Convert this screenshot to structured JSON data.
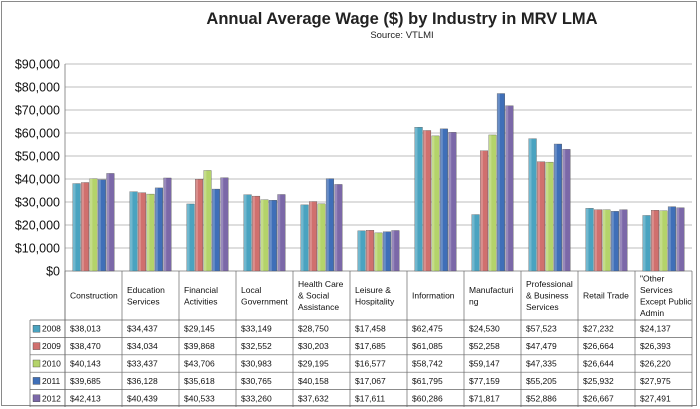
{
  "chart_data": {
    "type": "bar",
    "title": "Annual Average Wage ($) by Industry in MRV LMA",
    "subtitle": "Source: VTLMI",
    "ylim": [
      0,
      90000
    ],
    "yticks": [
      "$0",
      "$10,000",
      "$20,000",
      "$30,000",
      "$40,000",
      "$50,000",
      "$60,000",
      "$70,000",
      "$80,000",
      "$90,000"
    ],
    "grid": true,
    "legend": "data-table-left",
    "categories": [
      [
        "Construction"
      ],
      [
        "Education",
        "Services"
      ],
      [
        "Financial",
        "Activities"
      ],
      [
        "Local",
        "Government"
      ],
      [
        "Health Care",
        "& Social",
        "Assistance"
      ],
      [
        "Leisure &",
        "Hospitality"
      ],
      [
        "Information"
      ],
      [
        "Manufacturi",
        "ng"
      ],
      [
        "Professional",
        "& Business",
        "Services"
      ],
      [
        "Retail Trade"
      ],
      [
        "\"Other",
        "Services",
        "Except Public",
        "Admin"
      ]
    ],
    "series": [
      {
        "name": "2008",
        "color": "#4aa3c0",
        "values": [
          38013,
          34437,
          29145,
          33149,
          28750,
          17458,
          62475,
          24530,
          57523,
          27232,
          24137
        ],
        "labels": [
          "$38,013",
          "$34,437",
          "$29,145",
          "$33,149",
          "$28,750",
          "$17,458",
          "$62,475",
          "$24,530",
          "$57,523",
          "$27,232",
          "$24,137"
        ]
      },
      {
        "name": "2009",
        "color": "#d0706e",
        "values": [
          38470,
          34034,
          39868,
          32552,
          30203,
          17685,
          61085,
          52258,
          47479,
          26664,
          26393
        ],
        "labels": [
          "$38,470",
          "$34,034",
          "$39,868",
          "$32,552",
          "$30,203",
          "$17,685",
          "$61,085",
          "$52,258",
          "$47,479",
          "$26,664",
          "$26,393"
        ]
      },
      {
        "name": "2010",
        "color": "#b4d36a",
        "values": [
          40143,
          33437,
          43706,
          30983,
          29195,
          16577,
          58742,
          59147,
          47335,
          26644,
          26220
        ],
        "labels": [
          "$40,143",
          "$33,437",
          "$43,706",
          "$30,983",
          "$29,195",
          "$16,577",
          "$58,742",
          "$59,147",
          "$47,335",
          "$26,644",
          "$26,220"
        ]
      },
      {
        "name": "2011",
        "color": "#3f6fb8",
        "values": [
          39685,
          36128,
          35618,
          30765,
          40158,
          17067,
          61795,
          77159,
          55205,
          25932,
          27975
        ],
        "labels": [
          "$39,685",
          "$36,128",
          "$35,618",
          "$30,765",
          "$40,158",
          "$17,067",
          "$61,795",
          "$77,159",
          "$55,205",
          "$25,932",
          "$27,975"
        ]
      },
      {
        "name": "2012",
        "color": "#7b68a8",
        "values": [
          42413,
          40439,
          40533,
          33260,
          37632,
          17611,
          60286,
          71817,
          52886,
          26667,
          27491
        ],
        "labels": [
          "$42,413",
          "$40,439",
          "$40,533",
          "$33,260",
          "$37,632",
          "$17,611",
          "$60,286",
          "$71,817",
          "$52,886",
          "$26,667",
          "$27,491"
        ]
      }
    ]
  }
}
